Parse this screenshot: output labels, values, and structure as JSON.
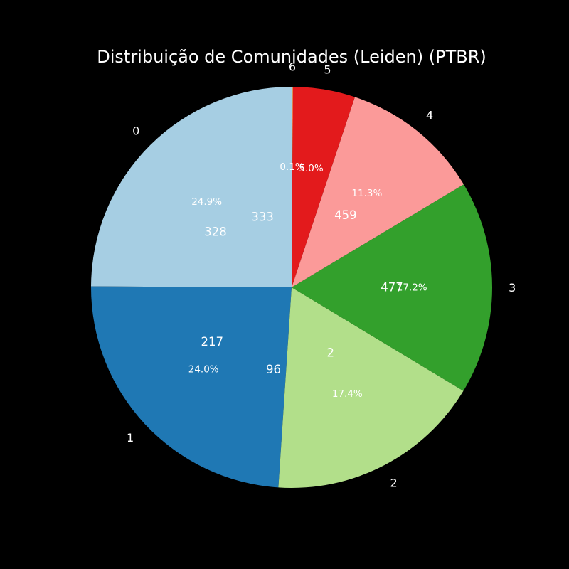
{
  "chart_data": {
    "type": "pie",
    "title": "Distribuição de Comunidades (Leiden) (PTBR)",
    "slices": [
      {
        "label": "0",
        "value": 24.9,
        "pct_label": "24.9%",
        "color": "#a6cee3"
      },
      {
        "label": "1",
        "value": 24.0,
        "pct_label": "24.0%",
        "color": "#1f78b4"
      },
      {
        "label": "2",
        "value": 17.4,
        "pct_label": "17.4%",
        "color": "#b2df8a"
      },
      {
        "label": "3",
        "value": 17.2,
        "pct_label": "17.2%",
        "color": "#33a02c"
      },
      {
        "label": "4",
        "value": 11.3,
        "pct_label": "11.3%",
        "color": "#fb9a99"
      },
      {
        "label": "5",
        "value": 5.0,
        "pct_label": "5.0%",
        "color": "#e31a1c"
      },
      {
        "label": "6",
        "value": 0.1,
        "pct_label": "0.1%",
        "color": "#fdbf6f"
      }
    ],
    "annotations": [
      {
        "text": "333",
        "slice": 0
      },
      {
        "text": "328",
        "slice": 0
      },
      {
        "text": "217",
        "slice": 1
      },
      {
        "text": "96",
        "slice": 1
      },
      {
        "text": "2",
        "slice": 2
      },
      {
        "text": "477",
        "slice": 3
      },
      {
        "text": "459",
        "slice": 4
      }
    ],
    "start_angle_deg": 90,
    "direction": "counterclockwise",
    "background": "#000000",
    "text_color": "#ffffff"
  }
}
